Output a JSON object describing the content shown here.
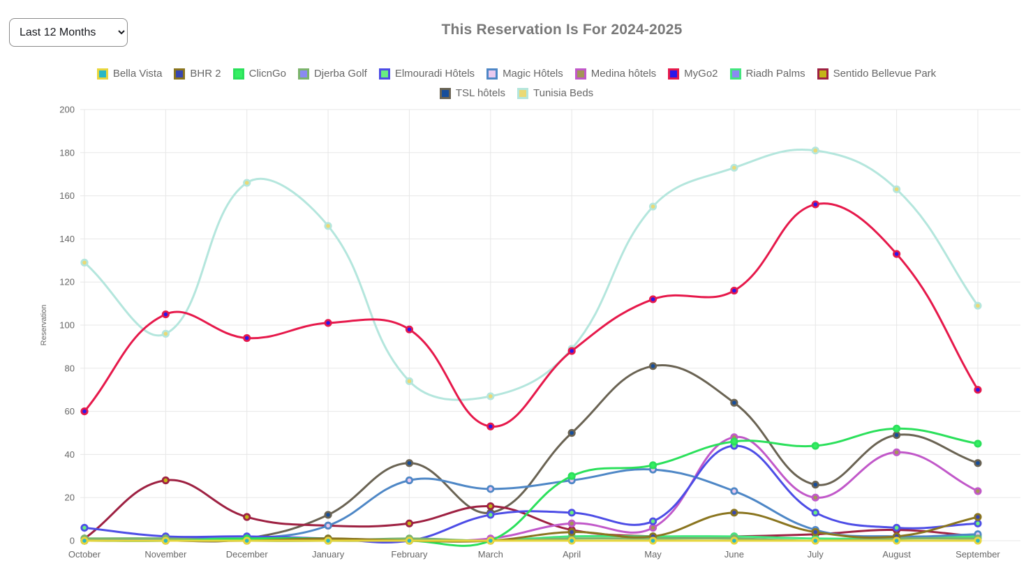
{
  "controls": {
    "period_select": {
      "selected": "Last 12 Months",
      "options": [
        "Last 12 Months"
      ]
    }
  },
  "header": {
    "title": "This Reservation Is For 2024-2025"
  },
  "chart_data": {
    "type": "line",
    "title": "This Reservation Is For 2024-2025",
    "xlabel": "",
    "ylabel": "Reservation",
    "ylim": [
      0,
      200
    ],
    "yticks": [
      0,
      20,
      40,
      60,
      80,
      100,
      120,
      140,
      160,
      180,
      200
    ],
    "grid": true,
    "legend_position": "top",
    "legend_rows": [
      10,
      2
    ],
    "line_tension": 0.4,
    "categories": [
      "October",
      "November",
      "December",
      "January",
      "February",
      "March",
      "April",
      "May",
      "June",
      "July",
      "August",
      "September"
    ],
    "series": [
      {
        "name": "Bella Vista",
        "line_color": "#e8d63c",
        "point_color": "#28b7c6",
        "values": [
          0,
          0,
          0,
          0,
          0,
          0,
          0,
          0,
          0,
          0,
          0,
          0
        ]
      },
      {
        "name": "BHR 2",
        "line_color": "#8a751f",
        "point_color": "#3847b0",
        "values": [
          0,
          0,
          0,
          1,
          0,
          0,
          4,
          2,
          13,
          4,
          2,
          11
        ]
      },
      {
        "name": "ClicnGo",
        "line_color": "#2be05b",
        "point_color": "#35ef63",
        "values": [
          0,
          0,
          1,
          1,
          0,
          0,
          30,
          35,
          46,
          44,
          52,
          45
        ]
      },
      {
        "name": "Djerba Golf",
        "line_color": "#7cb46c",
        "point_color": "#8a8af2",
        "values": [
          1,
          1,
          0,
          0,
          1,
          0,
          1,
          1,
          1,
          0,
          1,
          1
        ]
      },
      {
        "name": "Elmouradi Hôtels",
        "line_color": "#4d4de6",
        "point_color": "#68ef82",
        "values": [
          6,
          2,
          2,
          1,
          0,
          12,
          13,
          9,
          44,
          13,
          6,
          8
        ]
      },
      {
        "name": "Magic Hôtels",
        "line_color": "#4e87c6",
        "point_color": "#e9c9ef",
        "values": [
          0,
          1,
          1,
          7,
          28,
          24,
          28,
          33,
          23,
          5,
          2,
          3
        ]
      },
      {
        "name": "Medina hôtels",
        "line_color": "#c158c9",
        "point_color": "#a39557",
        "values": [
          0,
          0,
          0,
          0,
          0,
          1,
          8,
          6,
          48,
          20,
          41,
          23
        ]
      },
      {
        "name": "MyGo2",
        "line_color": "#e6194b",
        "point_color": "#2a17ea",
        "values": [
          60,
          105,
          94,
          101,
          98,
          53,
          88,
          112,
          116,
          156,
          133,
          70
        ]
      },
      {
        "name": "Riadh Palms",
        "line_color": "#43e57e",
        "point_color": "#8a8af2",
        "values": [
          1,
          1,
          1,
          0,
          0,
          0,
          2,
          2,
          2,
          1,
          1,
          2
        ]
      },
      {
        "name": "Sentido Bellevue Park",
        "line_color": "#9e2142",
        "point_color": "#c4b517",
        "values": [
          1,
          28,
          11,
          7,
          8,
          16,
          5,
          2,
          2,
          3,
          5,
          2
        ]
      },
      {
        "name": "TSL hôtels",
        "line_color": "#6a6353",
        "point_color": "#174e9b",
        "values": [
          0,
          0,
          1,
          12,
          36,
          13,
          50,
          81,
          64,
          26,
          49,
          36
        ]
      },
      {
        "name": "Tunisia Beds",
        "line_color": "#b4e6dd",
        "point_color": "#ead975",
        "values": [
          129,
          96,
          166,
          146,
          74,
          67,
          89,
          155,
          173,
          181,
          163,
          109
        ]
      }
    ]
  }
}
